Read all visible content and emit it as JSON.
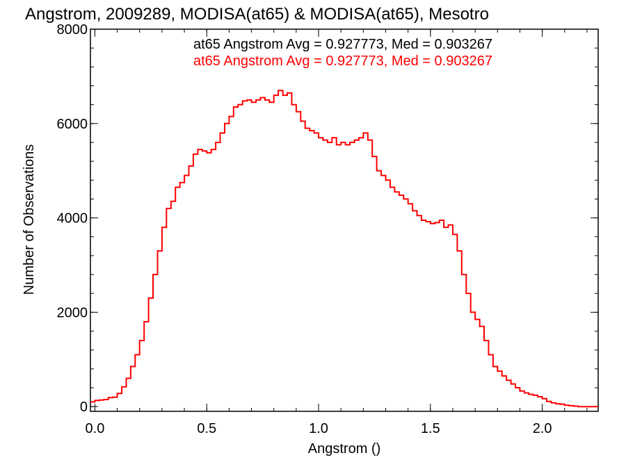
{
  "chart_data": {
    "type": "histogram-step",
    "title": "Angstrom, 2009289, MODISA(at65) & MODISA(at65), Mesotro",
    "xlabel": "Angstrom ()",
    "ylabel": "Number of Observations",
    "xlim": [
      -0.02,
      2.25
    ],
    "ylim": [
      -100,
      8000
    ],
    "x_ticks": [
      {
        "value": 0.0,
        "label": "0.0"
      },
      {
        "value": 0.5,
        "label": "0.5"
      },
      {
        "value": 1.0,
        "label": "1.0"
      },
      {
        "value": 1.5,
        "label": "1.5"
      },
      {
        "value": 2.0,
        "label": "2.0"
      }
    ],
    "x_minor_step": 0.1,
    "y_ticks": [
      {
        "value": 0,
        "label": "0"
      },
      {
        "value": 2000,
        "label": "2000"
      },
      {
        "value": 4000,
        "label": "4000"
      },
      {
        "value": 6000,
        "label": "6000"
      },
      {
        "value": 8000,
        "label": "8000"
      }
    ],
    "y_minor_step": 400,
    "legend": [
      {
        "text": "at65 Angstrom Avg = 0.927773, Med = 0.903267",
        "color": "#000000"
      },
      {
        "text": "at65 Angstrom Avg = 0.927773, Med = 0.903267",
        "color": "#ff0000"
      }
    ],
    "series": [
      {
        "color": "#ff0000",
        "points": [
          [
            -0.02,
            100
          ],
          [
            0.0,
            130
          ],
          [
            0.02,
            140
          ],
          [
            0.04,
            150
          ],
          [
            0.06,
            190
          ],
          [
            0.08,
            200
          ],
          [
            0.1,
            280
          ],
          [
            0.12,
            420
          ],
          [
            0.14,
            600
          ],
          [
            0.16,
            850
          ],
          [
            0.18,
            1100
          ],
          [
            0.2,
            1400
          ],
          [
            0.22,
            1800
          ],
          [
            0.24,
            2300
          ],
          [
            0.26,
            2800
          ],
          [
            0.28,
            3300
          ],
          [
            0.3,
            3800
          ],
          [
            0.32,
            4200
          ],
          [
            0.34,
            4350
          ],
          [
            0.36,
            4650
          ],
          [
            0.38,
            4750
          ],
          [
            0.4,
            4900
          ],
          [
            0.42,
            5100
          ],
          [
            0.44,
            5350
          ],
          [
            0.46,
            5450
          ],
          [
            0.48,
            5420
          ],
          [
            0.5,
            5380
          ],
          [
            0.52,
            5450
          ],
          [
            0.54,
            5600
          ],
          [
            0.56,
            5800
          ],
          [
            0.58,
            6000
          ],
          [
            0.6,
            6150
          ],
          [
            0.62,
            6350
          ],
          [
            0.64,
            6400
          ],
          [
            0.66,
            6480
          ],
          [
            0.68,
            6500
          ],
          [
            0.7,
            6450
          ],
          [
            0.72,
            6500
          ],
          [
            0.74,
            6550
          ],
          [
            0.76,
            6500
          ],
          [
            0.78,
            6450
          ],
          [
            0.8,
            6600
          ],
          [
            0.82,
            6700
          ],
          [
            0.84,
            6600
          ],
          [
            0.86,
            6650
          ],
          [
            0.88,
            6400
          ],
          [
            0.9,
            6250
          ],
          [
            0.92,
            6050
          ],
          [
            0.94,
            5900
          ],
          [
            0.96,
            5850
          ],
          [
            0.98,
            5800
          ],
          [
            1.0,
            5700
          ],
          [
            1.02,
            5650
          ],
          [
            1.04,
            5600
          ],
          [
            1.06,
            5700
          ],
          [
            1.08,
            5550
          ],
          [
            1.1,
            5600
          ],
          [
            1.12,
            5550
          ],
          [
            1.14,
            5600
          ],
          [
            1.16,
            5650
          ],
          [
            1.18,
            5700
          ],
          [
            1.2,
            5800
          ],
          [
            1.22,
            5650
          ],
          [
            1.24,
            5300
          ],
          [
            1.26,
            5000
          ],
          [
            1.28,
            4900
          ],
          [
            1.3,
            4800
          ],
          [
            1.32,
            4650
          ],
          [
            1.34,
            4550
          ],
          [
            1.36,
            4480
          ],
          [
            1.38,
            4400
          ],
          [
            1.4,
            4300
          ],
          [
            1.42,
            4150
          ],
          [
            1.44,
            4050
          ],
          [
            1.46,
            3950
          ],
          [
            1.48,
            3920
          ],
          [
            1.5,
            3880
          ],
          [
            1.52,
            3900
          ],
          [
            1.54,
            3950
          ],
          [
            1.56,
            3800
          ],
          [
            1.58,
            3850
          ],
          [
            1.6,
            3650
          ],
          [
            1.62,
            3300
          ],
          [
            1.64,
            2800
          ],
          [
            1.66,
            2400
          ],
          [
            1.68,
            2000
          ],
          [
            1.7,
            1850
          ],
          [
            1.72,
            1700
          ],
          [
            1.74,
            1400
          ],
          [
            1.76,
            1100
          ],
          [
            1.78,
            850
          ],
          [
            1.8,
            750
          ],
          [
            1.82,
            650
          ],
          [
            1.84,
            560
          ],
          [
            1.86,
            480
          ],
          [
            1.88,
            400
          ],
          [
            1.9,
            330
          ],
          [
            1.92,
            290
          ],
          [
            1.94,
            260
          ],
          [
            1.96,
            240
          ],
          [
            1.98,
            210
          ],
          [
            2.0,
            170
          ],
          [
            2.02,
            110
          ],
          [
            2.04,
            80
          ],
          [
            2.06,
            60
          ],
          [
            2.08,
            50
          ],
          [
            2.1,
            30
          ],
          [
            2.12,
            20
          ],
          [
            2.14,
            10
          ],
          [
            2.16,
            0
          ],
          [
            2.25,
            0
          ]
        ]
      }
    ],
    "grid": false,
    "legend_position": "top-right"
  }
}
